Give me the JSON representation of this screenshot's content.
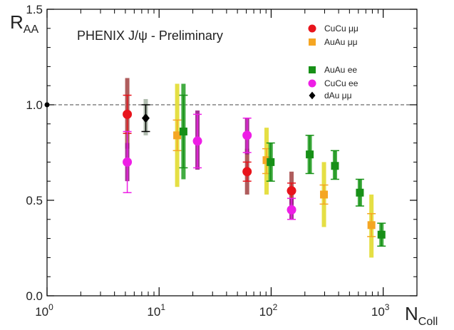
{
  "chart_data": {
    "type": "scatter",
    "title": "PHENIX J/ψ - Preliminary",
    "ylabel": {
      "main": "R",
      "sub": "AA"
    },
    "xlabel": {
      "main": "N",
      "sub": "Coll"
    },
    "xscale": "log",
    "xlim": [
      1,
      2000
    ],
    "ylim": [
      0,
      1.5
    ],
    "grid": false,
    "legend_position": "top-right",
    "reference_line": {
      "y": 1.0,
      "style": "dashed"
    },
    "x_ticks": [
      {
        "value": 1,
        "base": "10",
        "exp": "0"
      },
      {
        "value": 10,
        "base": "10",
        "exp": "1"
      },
      {
        "value": 100,
        "base": "10",
        "exp": "2"
      },
      {
        "value": 1000,
        "base": "10",
        "exp": "3"
      }
    ],
    "y_ticks": [
      {
        "value": 0.0,
        "label": "0.0"
      },
      {
        "value": 0.5,
        "label": "0.5"
      },
      {
        "value": 1.0,
        "label": "1.0"
      },
      {
        "value": 1.5,
        "label": "1.5"
      }
    ],
    "series": [
      {
        "name": "CuCu μμ",
        "marker": "circle",
        "color": "#e8141c",
        "sys_color": "#a64b4b",
        "points": [
          {
            "x": 5.2,
            "y": 0.95,
            "stat": [
              0.85,
              1.05
            ],
            "sys": [
              0.77,
              1.14
            ]
          },
          {
            "x": 61,
            "y": 0.65,
            "stat": [
              0.6,
              0.7
            ],
            "sys": [
              0.53,
              0.77
            ]
          },
          {
            "x": 152,
            "y": 0.55,
            "stat": [
              0.51,
              0.59
            ],
            "sys": [
              0.48,
              0.65
            ]
          }
        ]
      },
      {
        "name": "AuAu μμ",
        "marker": "square",
        "color": "#f5a623",
        "sys_color": "#e2dc30",
        "points": [
          {
            "x": 14.5,
            "y": 0.84,
            "stat": [
              0.76,
              0.92
            ],
            "sys": [
              0.57,
              1.11
            ]
          },
          {
            "x": 91,
            "y": 0.71,
            "stat": [
              0.64,
              0.77
            ],
            "sys": [
              0.53,
              0.88
            ]
          },
          {
            "x": 296,
            "y": 0.53,
            "stat": [
              0.48,
              0.58
            ],
            "sys": [
              0.36,
              0.7
            ]
          },
          {
            "x": 785,
            "y": 0.37,
            "stat": [
              0.31,
              0.43
            ],
            "sys": [
              0.2,
              0.53
            ]
          }
        ]
      },
      {
        "name": "AuAu ee",
        "marker": "square",
        "color": "#179017",
        "sys_color": "#2ea32e",
        "points": [
          {
            "x": 16.5,
            "y": 0.86,
            "stat": [
              0.67,
              1.05
            ],
            "sys": [
              0.61,
              1.11
            ]
          },
          {
            "x": 99,
            "y": 0.7,
            "stat": [
              0.6,
              0.8
            ],
            "sys": [
              0.6,
              0.8
            ]
          },
          {
            "x": 221,
            "y": 0.74,
            "stat": [
              0.64,
              0.84
            ],
            "sys": [
              0.64,
              0.84
            ]
          },
          {
            "x": 371,
            "y": 0.68,
            "stat": [
              0.61,
              0.76
            ],
            "sys": [
              0.61,
              0.76
            ]
          },
          {
            "x": 619,
            "y": 0.54,
            "stat": [
              0.47,
              0.61
            ],
            "sys": [
              0.47,
              0.61
            ]
          },
          {
            "x": 965,
            "y": 0.32,
            "stat": [
              0.26,
              0.38
            ],
            "sys": [
              0.26,
              0.38
            ]
          }
        ]
      },
      {
        "name": "CuCu ee",
        "marker": "circle",
        "color": "#ee1ee6",
        "sys_color": "#9b1f8c",
        "points": [
          {
            "x": 5.2,
            "y": 0.7,
            "stat": [
              0.54,
              0.86
            ],
            "sys": [
              0.6,
              0.8
            ]
          },
          {
            "x": 22,
            "y": 0.81,
            "stat": [
              0.67,
              0.95
            ],
            "sys": [
              0.66,
              0.97
            ]
          },
          {
            "x": 61,
            "y": 0.84,
            "stat": [
              0.75,
              0.93
            ],
            "sys": [
              0.74,
              0.93
            ]
          },
          {
            "x": 152,
            "y": 0.45,
            "stat": [
              0.4,
              0.51
            ],
            "sys": [
              0.4,
              0.51
            ]
          }
        ]
      },
      {
        "name": "dAu μμ",
        "marker": "diamond",
        "color": "#000000",
        "sys_color": "#aab7a8",
        "points": [
          {
            "x": 7.6,
            "y": 0.93,
            "stat": [
              0.86,
              1.0
            ],
            "sys": [
              0.84,
              1.03
            ]
          }
        ]
      }
    ]
  }
}
